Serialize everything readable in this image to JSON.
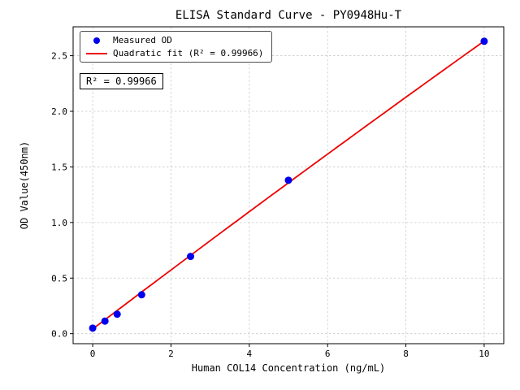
{
  "chart_data": {
    "type": "scatter",
    "title": "ELISA Standard Curve - PY0948Hu-T",
    "xlabel": "Human COL14 Concentration (ng/mL)",
    "ylabel": "OD Value(450nm)",
    "xlim": [
      -0.5,
      10.5
    ],
    "ylim": [
      -0.09,
      2.76
    ],
    "xticks": [
      0,
      2,
      4,
      6,
      8,
      10
    ],
    "xtick_labels": [
      "0",
      "2",
      "4",
      "6",
      "8",
      "10"
    ],
    "yticks": [
      0,
      0.5,
      1,
      1.5,
      2,
      2.5
    ],
    "ytick_labels": [
      "0.0",
      "0.5",
      "1.0",
      "1.5",
      "2.0",
      "2.5"
    ],
    "grid": true,
    "series": [
      {
        "name": "Measured OD",
        "type": "scatter",
        "x": [
          0,
          0.313,
          0.625,
          1.25,
          2.5,
          5,
          10
        ],
        "y": [
          0.05,
          0.113,
          0.175,
          0.35,
          0.695,
          1.38,
          2.63
        ],
        "color": "#0000ee"
      },
      {
        "name": "Quadratic fit (R² = 0.99966)",
        "type": "line",
        "fit": {
          "a": -0.0008,
          "b": 0.267,
          "c": 0.042
        },
        "x_range": [
          0,
          10
        ],
        "color": "#ee0000"
      }
    ],
    "legend": {
      "position": "upper left",
      "entries": [
        "Measured OD",
        "Quadratic fit (R² = 0.99966)"
      ]
    },
    "annotation": "R² = 0.99966",
    "r_squared": 0.99966,
    "colors": {
      "grid": "#c9c9c9",
      "frame": "#000000",
      "marker": "#0000ee",
      "fit_line": "#ee0000",
      "background": "#ffffff"
    }
  }
}
